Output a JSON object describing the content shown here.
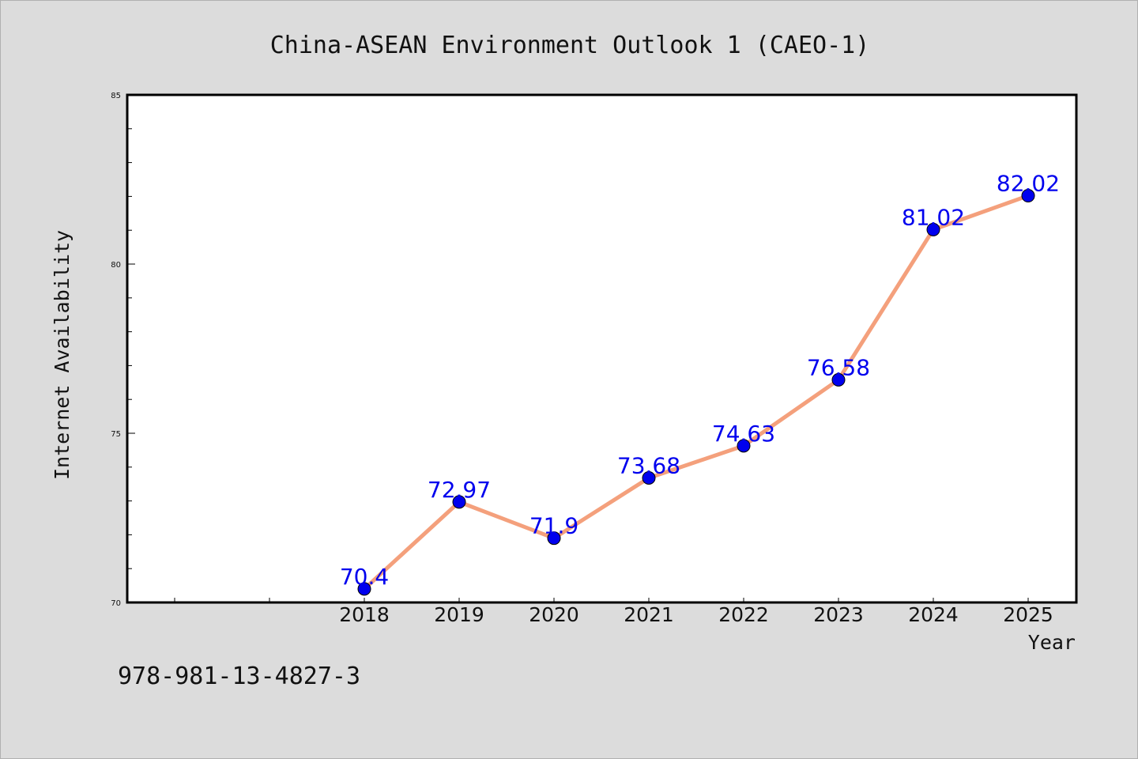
{
  "chart_data": {
    "type": "line",
    "title": "China-ASEAN Environment Outlook 1 (CAEO-1)",
    "xlabel": "Year",
    "ylabel": "Internet Availability",
    "categories": [
      "2018",
      "2019",
      "2020",
      "2021",
      "2022",
      "2023",
      "2024",
      "2025"
    ],
    "series": [
      {
        "values": [
          70.4,
          72.97,
          71.9,
          73.68,
          74.63,
          76.58,
          81.02,
          82.02
        ],
        "labels": [
          "70.4",
          "72.97",
          "71.9",
          "73.68",
          "74.63",
          "76.58",
          "81.02",
          "82.02"
        ],
        "line_color": "#f4a07c",
        "marker_color": "#0000ee",
        "label_color": "#0000ee"
      }
    ],
    "ylim": [
      70,
      85
    ],
    "yticks": [
      70,
      75,
      80,
      85
    ],
    "ytick_labels": [
      "70",
      "75",
      "80",
      "85"
    ],
    "grid": false,
    "legend": "none"
  },
  "footnote": "978-981-13-4827-3"
}
